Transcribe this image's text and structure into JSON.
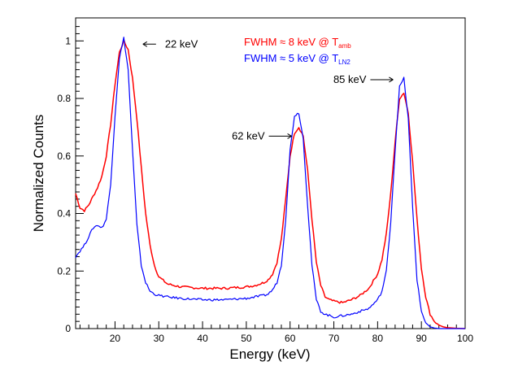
{
  "chart_data": {
    "type": "line",
    "xlabel": "Energy (keV)",
    "ylabel": "Normalized Counts",
    "xlim": [
      11,
      100
    ],
    "ylim": [
      0,
      1.08
    ],
    "x_ticks": [
      "20",
      "30",
      "40",
      "50",
      "60",
      "70",
      "80",
      "90",
      "100"
    ],
    "y_ticks": [
      "0",
      "0.2",
      "0.4",
      "0.6",
      "0.8",
      "1"
    ],
    "grid": false,
    "legend_position": "top-right",
    "legend": [
      {
        "prefix": "FWHM  ≈ 8 keV @ T",
        "subscript": "amb",
        "color": "#ff0000"
      },
      {
        "prefix": "FWHM  ≈ 5 keV @ T",
        "subscript": "LN2",
        "color": "#0000ff"
      }
    ],
    "annotations": [
      {
        "text": "22 keV",
        "arrow": "←",
        "x": 22.3,
        "y": 1.0
      },
      {
        "text": "62 keV",
        "arrow": "→",
        "x": 62.2,
        "y": 0.7
      },
      {
        "text": "85 keV",
        "arrow": "→",
        "x": 85.4,
        "y": 0.82
      }
    ],
    "series": [
      {
        "color": "#ff0000",
        "x": [
          11,
          12,
          13,
          14,
          15,
          16,
          17,
          18,
          19,
          20,
          21,
          22,
          23,
          24,
          25,
          26,
          27,
          28,
          29,
          30,
          32,
          35,
          40,
          45,
          50,
          52,
          54,
          55,
          56,
          57,
          58,
          59,
          60,
          61,
          62,
          63,
          64,
          65,
          66,
          67,
          68,
          69,
          70,
          72,
          74,
          76,
          78,
          80,
          81,
          82,
          83,
          84,
          85,
          86,
          87,
          88,
          89,
          90,
          91,
          92,
          93,
          94,
          95,
          96,
          98,
          100
        ],
        "y": [
          0.47,
          0.42,
          0.41,
          0.43,
          0.46,
          0.49,
          0.53,
          0.6,
          0.71,
          0.85,
          0.96,
          1.0,
          0.97,
          0.87,
          0.73,
          0.56,
          0.4,
          0.29,
          0.22,
          0.18,
          0.155,
          0.145,
          0.14,
          0.14,
          0.145,
          0.15,
          0.16,
          0.17,
          0.19,
          0.23,
          0.31,
          0.45,
          0.6,
          0.68,
          0.7,
          0.67,
          0.55,
          0.38,
          0.23,
          0.15,
          0.11,
          0.1,
          0.095,
          0.09,
          0.1,
          0.115,
          0.14,
          0.19,
          0.24,
          0.33,
          0.47,
          0.65,
          0.8,
          0.82,
          0.75,
          0.58,
          0.38,
          0.21,
          0.11,
          0.05,
          0.025,
          0.012,
          0.006,
          0.003,
          0.001,
          0.0
        ]
      },
      {
        "color": "#0000ff",
        "x": [
          11,
          12,
          13,
          14,
          15,
          16,
          17,
          18,
          19,
          20,
          21,
          22,
          23,
          24,
          25,
          26,
          27,
          28,
          29,
          30,
          32,
          35,
          40,
          45,
          50,
          52,
          54,
          55,
          56,
          57,
          58,
          59,
          60,
          61,
          62,
          63,
          64,
          65,
          66,
          67,
          68,
          69,
          70,
          72,
          74,
          76,
          78,
          80,
          81,
          82,
          83,
          84,
          85,
          86,
          87,
          88,
          89,
          90,
          91,
          92,
          93,
          94,
          95,
          96,
          98,
          100
        ],
        "y": [
          0.25,
          0.27,
          0.29,
          0.32,
          0.35,
          0.36,
          0.35,
          0.38,
          0.5,
          0.74,
          0.94,
          1.01,
          0.9,
          0.62,
          0.36,
          0.22,
          0.16,
          0.13,
          0.12,
          0.115,
          0.11,
          0.105,
          0.1,
          0.1,
          0.105,
          0.11,
          0.115,
          0.12,
          0.135,
          0.16,
          0.22,
          0.38,
          0.62,
          0.74,
          0.75,
          0.66,
          0.43,
          0.22,
          0.1,
          0.06,
          0.05,
          0.045,
          0.04,
          0.045,
          0.05,
          0.06,
          0.07,
          0.1,
          0.13,
          0.2,
          0.37,
          0.62,
          0.84,
          0.87,
          0.73,
          0.42,
          0.17,
          0.06,
          0.02,
          0.006,
          0.002,
          0.0,
          0.0,
          0.0,
          0.0,
          0.0
        ]
      }
    ]
  }
}
